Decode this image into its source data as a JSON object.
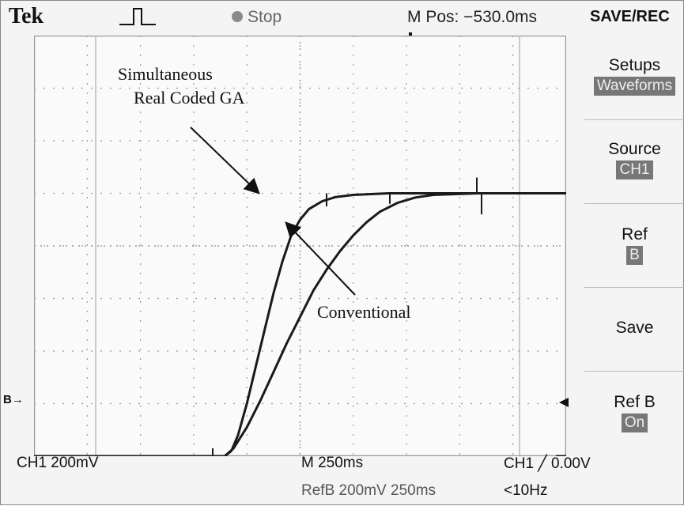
{
  "header": {
    "brand": "Tek",
    "run_state": "Stop",
    "horizontal_position": "M Pos: −530.0ms",
    "menu_title": "SAVE/REC"
  },
  "side_menu": {
    "items": [
      {
        "label": "Setups",
        "value": "Waveforms"
      },
      {
        "label": "Source",
        "value": "CH1"
      },
      {
        "label": "Ref",
        "value": "B"
      },
      {
        "label": "Save",
        "value": ""
      },
      {
        "label": "Ref B",
        "value": "On"
      }
    ]
  },
  "markers": {
    "ref_marker": "B→"
  },
  "status": {
    "channel_scale": "CH1  200mV",
    "timebase": "M 250ms",
    "trigger": "CH1 ╱ 0.00V",
    "reference": "RefB 200mV 250ms",
    "trigger_frequency": "<10Hz"
  },
  "annotations": {
    "ga_line1": "Simultaneous",
    "ga_line2": "Real Coded GA",
    "conventional": "Conventional"
  },
  "colors": {
    "trace": "#1a1a1a",
    "grid": "#9a9a9a",
    "background": "#fafafa"
  },
  "chart_data": {
    "type": "line",
    "divisions": {
      "x": 10,
      "y": 8
    },
    "x_unit": "div",
    "y_unit": "div",
    "series": [
      {
        "label": "Simultaneous Real Coded GA",
        "x": [
          0,
          1,
          2,
          3,
          4.3,
          4.45,
          4.6,
          4.8,
          5.0,
          5.2,
          5.4,
          5.6,
          5.8,
          6.0,
          6.2,
          6.5,
          6.8,
          7.2,
          8,
          9,
          10,
          11,
          12
        ],
        "y": [
          -4.0,
          -4.0,
          -4.0,
          -4.0,
          -4.0,
          -3.9,
          -3.6,
          -3.0,
          -2.3,
          -1.6,
          -0.9,
          -0.3,
          0.2,
          0.5,
          0.7,
          0.85,
          0.93,
          0.97,
          1.0,
          1.0,
          1.0,
          1.0,
          1.0
        ]
      },
      {
        "label": "Conventional",
        "x": [
          0,
          1,
          2,
          3,
          4.3,
          4.5,
          4.8,
          5.1,
          5.4,
          5.7,
          6.0,
          6.3,
          6.6,
          6.9,
          7.2,
          7.5,
          7.8,
          8.2,
          8.6,
          9,
          10,
          11,
          12
        ],
        "y": [
          -4.0,
          -4.0,
          -4.0,
          -4.0,
          -4.0,
          -3.85,
          -3.45,
          -2.95,
          -2.4,
          -1.85,
          -1.35,
          -0.85,
          -0.45,
          -0.1,
          0.2,
          0.45,
          0.65,
          0.82,
          0.92,
          0.97,
          1.0,
          1.0,
          1.0
        ]
      }
    ]
  }
}
